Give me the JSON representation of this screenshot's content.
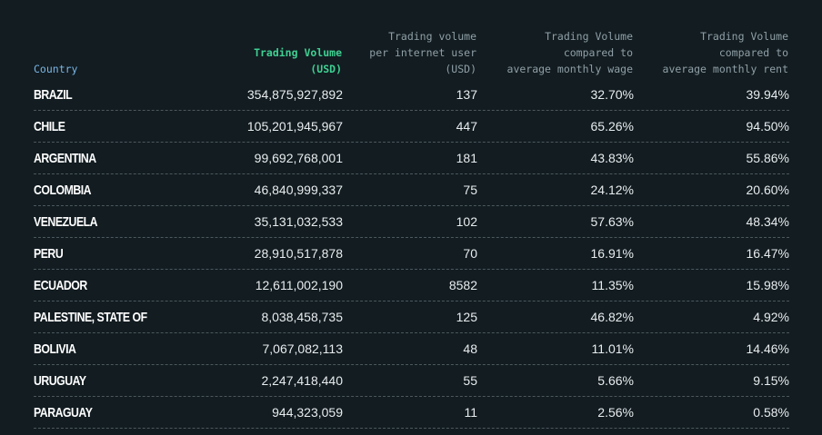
{
  "chart_data": {
    "type": "table",
    "columns": [
      "Country",
      "Trading Volume\n(USD)",
      "Trading volume\nper internet user\n(USD)",
      "Trading Volume\ncompared to\naverage monthly wage",
      "Trading Volume\ncompared to\naverage monthly rent"
    ],
    "rows": [
      {
        "country": "BRAZIL",
        "volume": "354,875,927,892",
        "per_user": "137",
        "wage": "32.70%",
        "rent": "39.94%"
      },
      {
        "country": "CHILE",
        "volume": "105,201,945,967",
        "per_user": "447",
        "wage": "65.26%",
        "rent": "94.50%"
      },
      {
        "country": "ARGENTINA",
        "volume": "99,692,768,001",
        "per_user": "181",
        "wage": "43.83%",
        "rent": "55.86%"
      },
      {
        "country": "COLOMBIA",
        "volume": "46,840,999,337",
        "per_user": "75",
        "wage": "24.12%",
        "rent": "20.60%"
      },
      {
        "country": "VENEZUELA",
        "volume": "35,131,032,533",
        "per_user": "102",
        "wage": "57.63%",
        "rent": "48.34%"
      },
      {
        "country": "PERU",
        "volume": "28,910,517,878",
        "per_user": "70",
        "wage": "16.91%",
        "rent": "16.47%"
      },
      {
        "country": "ECUADOR",
        "volume": "12,611,002,190",
        "per_user": "8582",
        "wage": "11.35%",
        "rent": "15.98%"
      },
      {
        "country": "PALESTINE, STATE OF",
        "volume": "8,038,458,735",
        "per_user": "125",
        "wage": "46.82%",
        "rent": "4.92%"
      },
      {
        "country": "BOLIVIA",
        "volume": "7,067,082,113",
        "per_user": "48",
        "wage": "11.01%",
        "rent": "14.46%"
      },
      {
        "country": "URUGUAY",
        "volume": "2,247,418,440",
        "per_user": "55",
        "wage": "5.66%",
        "rent": "9.15%"
      },
      {
        "country": "PARAGUAY",
        "volume": "944,323,059",
        "per_user": "11",
        "wage": "2.56%",
        "rent": "0.58%"
      }
    ]
  },
  "colors": {
    "background": "#121c21",
    "country_header": "#7ab6e6",
    "volume_header": "#3fd092",
    "other_header": "#8fa0a6",
    "text": "#e8ecee"
  }
}
